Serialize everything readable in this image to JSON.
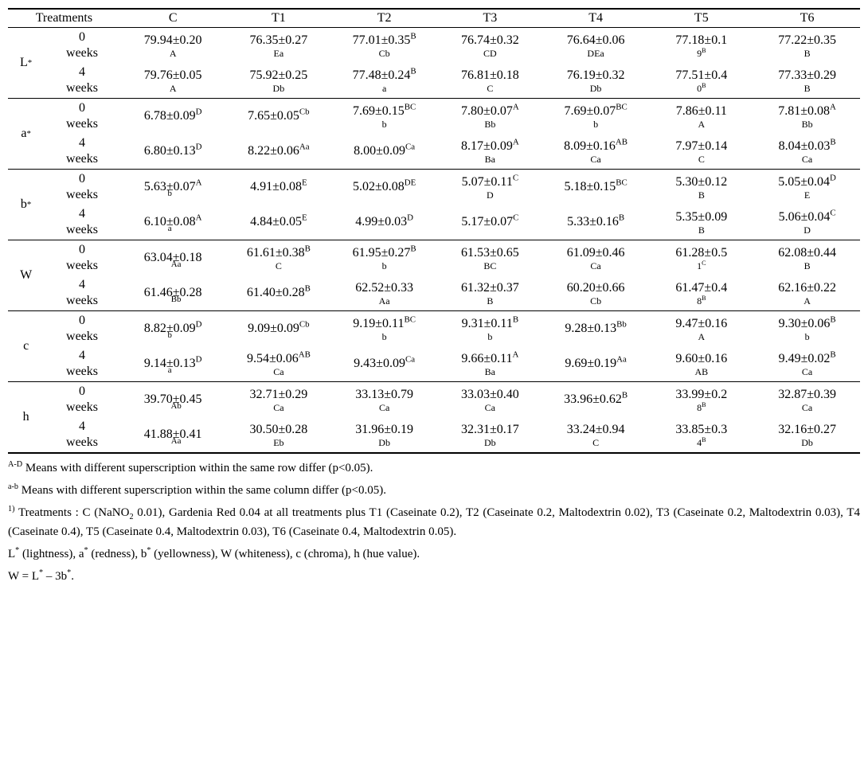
{
  "headers": {
    "treatments": "Treatments",
    "cols": [
      "C",
      "T1",
      "T2",
      "T3",
      "T4",
      "T5",
      "T6"
    ]
  },
  "params": [
    {
      "label_main": "L",
      "label_sup": "*",
      "rows": [
        {
          "time_top": "0",
          "time_bot": "weeks",
          "cells": [
            {
              "main": "79.94±0.20",
              "sup": "",
              "note": "A"
            },
            {
              "main": "76.35±0.27",
              "sup": "",
              "note": "Ea"
            },
            {
              "main": "77.01±0.35",
              "sup": "B",
              "note": "Cb"
            },
            {
              "main": "76.74±0.32",
              "sup": "",
              "note": "CD"
            },
            {
              "main": "76.64±0.06",
              "sup": "",
              "note": "DEa"
            },
            {
              "main": "77.18±0.1",
              "sup": "",
              "note": "9",
              "note_sup": "B"
            },
            {
              "main": "77.22±0.35",
              "sup": "",
              "note": "B"
            }
          ]
        },
        {
          "time_top": "4",
          "time_bot": "weeks",
          "cells": [
            {
              "main": "79.76±0.05",
              "sup": "",
              "note": "A"
            },
            {
              "main": "75.92±0.25",
              "sup": "",
              "note": "Db"
            },
            {
              "main": "77.48±0.24",
              "sup": "B",
              "note": "a"
            },
            {
              "main": "76.81±0.18",
              "sup": "",
              "note": "C"
            },
            {
              "main": "76.19±0.32",
              "sup": "",
              "note": "Db"
            },
            {
              "main": "77.51±0.4",
              "sup": "",
              "note": "0",
              "note_sup": "B"
            },
            {
              "main": "77.33±0.29",
              "sup": "",
              "note": "B"
            }
          ]
        }
      ]
    },
    {
      "label_main": "a",
      "label_sup": "*",
      "rows": [
        {
          "time_top": "0",
          "time_bot": "weeks",
          "cells": [
            {
              "main": "6.78±0.09",
              "sup": "D",
              "note": ""
            },
            {
              "main": "7.65±0.05",
              "sup": "Cb",
              "note": ""
            },
            {
              "main": "7.69±0.15",
              "sup": "BC",
              "note": "b"
            },
            {
              "main": "7.80±0.07",
              "sup": "A",
              "note": "Bb"
            },
            {
              "main": "7.69±0.07",
              "sup": "BC",
              "note": "b"
            },
            {
              "main": "7.86±0.11",
              "sup": "",
              "note": "A"
            },
            {
              "main": "7.81±0.08",
              "sup": "A",
              "note": "Bb"
            }
          ]
        },
        {
          "time_top": "4",
          "time_bot": "weeks",
          "cells": [
            {
              "main": "6.80±0.13",
              "sup": "D",
              "note": ""
            },
            {
              "main": "8.22±0.06",
              "sup": "Aa",
              "note": ""
            },
            {
              "main": "8.00±0.09",
              "sup": "Ca",
              "note": ""
            },
            {
              "main": "8.17±0.09",
              "sup": "A",
              "note": "Ba"
            },
            {
              "main": "8.09±0.16",
              "sup": "AB",
              "note": "Ca"
            },
            {
              "main": "7.97±0.14",
              "sup": "",
              "note": "C"
            },
            {
              "main": "8.04±0.03",
              "sup": "B",
              "note": "Ca"
            }
          ]
        }
      ]
    },
    {
      "label_main": "b",
      "label_sup": "*",
      "rows": [
        {
          "time_top": "0",
          "time_bot": "weeks",
          "cells": [
            {
              "main": "5.63±0.07",
              "sup": "A",
              "presub": "b",
              "note": ""
            },
            {
              "main": "4.91±0.08",
              "sup": "E",
              "note": ""
            },
            {
              "main": "5.02±0.08",
              "sup": "DE",
              "note": ""
            },
            {
              "main": "5.07±0.11",
              "sup": "C",
              "note": "D"
            },
            {
              "main": "5.18±0.15",
              "sup": "BC",
              "note": ""
            },
            {
              "main": "5.30±0.12",
              "sup": "",
              "note": "B"
            },
            {
              "main": "5.05±0.04",
              "sup": "D",
              "note": "E"
            }
          ]
        },
        {
          "time_top": "4",
          "time_bot": "weeks",
          "cells": [
            {
              "main": "6.10±0.08",
              "sup": "A",
              "presub": "a",
              "note": ""
            },
            {
              "main": "4.84±0.05",
              "sup": "E",
              "note": ""
            },
            {
              "main": "4.99±0.03",
              "sup": "D",
              "note": ""
            },
            {
              "main": "5.17±0.07",
              "sup": "C",
              "note": ""
            },
            {
              "main": "5.33±0.16",
              "sup": "B",
              "note": ""
            },
            {
              "main": "5.35±0.09",
              "sup": "",
              "note": "B"
            },
            {
              "main": "5.06±0.04",
              "sup": "C",
              "note": "D"
            }
          ]
        }
      ]
    },
    {
      "label_main": "W",
      "label_sup": "",
      "rows": [
        {
          "time_top": "0",
          "time_bot": "weeks",
          "cells": [
            {
              "main": "63.04±0.18",
              "sup": "",
              "presub": "Aa",
              "note": ""
            },
            {
              "main": "61.61±0.38",
              "sup": "B",
              "note": "C"
            },
            {
              "main": "61.95±0.27",
              "sup": "B",
              "note": "b"
            },
            {
              "main": "61.53±0.65",
              "sup": "",
              "note": "BC"
            },
            {
              "main": "61.09±0.46",
              "sup": "",
              "note": "Ca"
            },
            {
              "main": "61.28±0.5",
              "sup": "",
              "note": "1",
              "note_sup": "C"
            },
            {
              "main": "62.08±0.44",
              "sup": "",
              "note": "B"
            }
          ]
        },
        {
          "time_top": "4",
          "time_bot": "weeks",
          "cells": [
            {
              "main": "61.46±0.28",
              "sup": "",
              "presub": "Bb",
              "note": ""
            },
            {
              "main": "61.40±0.28",
              "sup": "B",
              "note": ""
            },
            {
              "main": "62.52±0.33",
              "sup": "",
              "note": "Aa"
            },
            {
              "main": "61.32±0.37",
              "sup": "",
              "note": "B"
            },
            {
              "main": "60.20±0.66",
              "sup": "",
              "note": "Cb"
            },
            {
              "main": "61.47±0.4",
              "sup": "",
              "note": "8",
              "note_sup": "B"
            },
            {
              "main": "62.16±0.22",
              "sup": "",
              "note": "A"
            }
          ]
        }
      ]
    },
    {
      "label_main": "c",
      "label_sup": "",
      "rows": [
        {
          "time_top": "0",
          "time_bot": "weeks",
          "cells": [
            {
              "main": "8.82±0.09",
              "sup": "D",
              "presub": "b",
              "note": ""
            },
            {
              "main": "9.09±0.09",
              "sup": "Cb",
              "note": ""
            },
            {
              "main": "9.19±0.11",
              "sup": "BC",
              "note": "b"
            },
            {
              "main": "9.31±0.11",
              "sup": "B",
              "note": "b"
            },
            {
              "main": "9.28±0.13",
              "sup": "Bb",
              "note": ""
            },
            {
              "main": "9.47±0.16",
              "sup": "",
              "note": "A"
            },
            {
              "main": "9.30±0.06",
              "sup": "B",
              "note": "b"
            }
          ]
        },
        {
          "time_top": "4",
          "time_bot": "weeks",
          "cells": [
            {
              "main": "9.14±0.13",
              "sup": "D",
              "presub": "a",
              "note": ""
            },
            {
              "main": "9.54±0.06",
              "sup": "AB",
              "note": "Ca"
            },
            {
              "main": "9.43±0.09",
              "sup": "Ca",
              "note": ""
            },
            {
              "main": "9.66±0.11",
              "sup": "A",
              "note": "Ba"
            },
            {
              "main": "9.69±0.19",
              "sup": "Aa",
              "note": ""
            },
            {
              "main": "9.60±0.16",
              "sup": "",
              "note": "AB"
            },
            {
              "main": "9.49±0.02",
              "sup": "B",
              "note": "Ca"
            }
          ]
        }
      ]
    },
    {
      "label_main": "h",
      "label_sup": "",
      "rows": [
        {
          "time_top": "0",
          "time_bot": "weeks",
          "cells": [
            {
              "main": "39.70±0.45",
              "sup": "",
              "presub": "Ab",
              "note": ""
            },
            {
              "main": "32.71±0.29",
              "sup": "",
              "note": "Ca"
            },
            {
              "main": "33.13±0.79",
              "sup": "",
              "note": "Ca"
            },
            {
              "main": "33.03±0.40",
              "sup": "",
              "note": "Ca"
            },
            {
              "main": "33.96±0.62",
              "sup": "B",
              "note": ""
            },
            {
              "main": "33.99±0.2",
              "sup": "",
              "note": "8",
              "note_sup": "B"
            },
            {
              "main": "32.87±0.39",
              "sup": "",
              "note": "Ca"
            }
          ]
        },
        {
          "time_top": "4",
          "time_bot": "weeks",
          "cells": [
            {
              "main": "41.88±0.41",
              "sup": "",
              "presub": "Aa",
              "note": ""
            },
            {
              "main": "30.50±0.28",
              "sup": "",
              "note": "Eb"
            },
            {
              "main": "31.96±0.19",
              "sup": "",
              "note": "Db"
            },
            {
              "main": "32.31±0.17",
              "sup": "",
              "note": "Db"
            },
            {
              "main": "33.24±0.94",
              "sup": "",
              "note": "C"
            },
            {
              "main": "33.85±0.3",
              "sup": "",
              "note": "4",
              "note_sup": "B"
            },
            {
              "main": "32.16±0.27",
              "sup": "",
              "note": "Db"
            }
          ]
        }
      ]
    }
  ],
  "footnotes": {
    "f1_pre": "A-D",
    "f1": " Means with different superscription within the same row differ (p<0.05).",
    "f2_pre": "a-b",
    "f2": " Means with different superscription within the same column differ (p<0.05).",
    "f3_pre": "1)",
    "f3a": " Treatments : C (NaNO",
    "f3a_sub": "2",
    "f3b": " 0.01), Gardenia Red 0.04 at all treatments plus T1 (Caseinate 0.2), T2 (Caseinate 0.2, Maltodextrin 0.02), T3 (Caseinate 0.2, Maltodextrin 0.03), T4 (Caseinate 0.4), T5 (Caseinate 0.4, Maltodextrin 0.03), T6 (Caseinate 0.4, Maltodextrin 0.05).",
    "f4": "L",
    "f4b": " (lightness), a",
    "f4c": " (redness), b",
    "f4d": " (yellowness), W (whiteness), c (chroma), h (hue value).",
    "f5": "W = L",
    "f5b": " – 3b",
    "f5c": "."
  }
}
